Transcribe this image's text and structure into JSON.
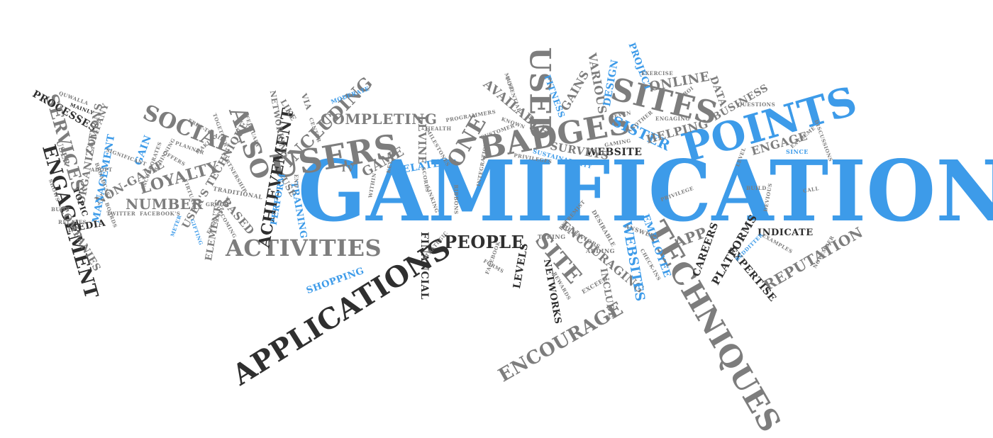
{
  "colors": {
    "blue": "#3d9be9",
    "dark": "#2f2f2f",
    "grey": "#7d7d7d",
    "light": "#a6a6a6"
  },
  "words": {
    "gamification": "GAMIFICATION",
    "points": "POINTS",
    "sites": "SITES",
    "badges": "BADGES",
    "used": "USED",
    "users": "USERS",
    "techniques": "TECHNIQUES",
    "applications": "APPLICATIONS",
    "activities": "ACTIVITIES",
    "also": "ALSO",
    "achievement": "ACHIEVEMENT",
    "engagement": "ENGAGEMENT",
    "services": "SERVICES",
    "processes": "PROCESSES",
    "social": "SOCIAL",
    "loyalty": "LOYALTY",
    "number": "NUMBER",
    "including": "INCLUDING",
    "completing": "COMPLETING",
    "game": "GAME",
    "levine": "LEVINE",
    "one": "ONE",
    "available": "AVAILABLE",
    "gains": "GAINS",
    "various": "VARIOUS",
    "design": "DESIGN",
    "project": "PROJECT",
    "online": "ONLINE",
    "data": "DATA",
    "business": "BUSINESS",
    "engage": "ENGAGE",
    "sister": "SISTER",
    "helping": "HELPING",
    "website": "WEBSITE",
    "surveys": "SURVEYS",
    "people": "PEOPLE",
    "site": "SITE",
    "encouraging": "ENCOURAGING",
    "encourage": "ENCOURAGE",
    "websites": "WEBSITES",
    "employee": "EMPLOYEE",
    "app": "APP",
    "careers": "CAREERS",
    "platforms": "PLATFORMS",
    "indicate": "INDICATE",
    "reputation": "REPUTATION",
    "expertise": "EXPERTISE",
    "financial": "FINANCIAL",
    "shopping": "SHOPPING",
    "levels": "LEVELS",
    "networks": "NETWORKS",
    "include": "INCLUDE",
    "related": "RELATED",
    "tv": "TV",
    "networking": "NETWORKING",
    "like": "LIKE",
    "via": "VIA",
    "perform": "PERFORM",
    "training": "TRAINING",
    "use": "USE",
    "based": "BASED",
    "users_technique": "USER'S TECHNIQUE",
    "elements": "ELEMENTS",
    "non_game": "NON-GAME",
    "gain": "GAIN",
    "management": "MANAGEMENT",
    "media": "MEDIA",
    "companies": "COMPANIES",
    "organizations": "ORGANIZATIONS",
    "company": "COMPANY",
    "topic": "TOPIC",
    "user": "USER",
    "fitness": "FITNESS",
    "sustainability": "SUSTAINABILITY",
    "moderate": "MODERATE",
    "taking": "TAKING",
    "behaviors": "BEHAVIORS",
    "adding": "ADDING",
    "exceed": "EXCEED",
    "desirable": "DESIRABLE",
    "answers": "ANSWERS",
    "check_ins": "CHECK-INS",
    "rewards": "REWARDS",
    "facebook": "FACEBOOK",
    "forms": "FORMS",
    "strategic": "STRATEGIC",
    "ribbons": "RIBBONS",
    "linking": "LINKING",
    "scores": "SCORES",
    "within": "WITHIN",
    "key": "KEY",
    "milestones": "MILESTONES",
    "health": "HEALTH",
    "integration": "INTEGRATION",
    "known": "KNOWN",
    "potential": "POTENTIAL",
    "customer": "CUSTOMER",
    "programmers": "PROGRAMMERS",
    "privileges": "PRIVILEGES",
    "privilege": "PRIVILEGE",
    "extremist": "EXTREMIST",
    "gaming": "GAMING",
    "seven": "SEVEN",
    "another": "ANOTHER",
    "engaging": "ENGAGING",
    "exercise": "EXERCISE",
    "roi": "ROI",
    "questions": "QUESTIONS",
    "discussions": "DISCUSSIONS",
    "extreme": "EXTREME",
    "since": "SINCE",
    "build": "BUILD",
    "devious": "DEVIOUS",
    "call": "CALL",
    "level": "LEVEL",
    "redditter": "REDDITTER",
    "examples": "EXAMPLES",
    "november": "NOVEMBER",
    "traditional": "TRADITIONAL",
    "partnership": "PARTNERSHIP",
    "group": "GROUP",
    "effectively": "EFFECTIVELY",
    "upcoming": "UPCOMING",
    "gifting": "GIFTING",
    "meter": "METER",
    "facebooks": "FACEBOOK'S",
    "twitter": "TWITTER",
    "boards": "BOARDS",
    "relates": "RELATES",
    "built": "BUILT",
    "shows": "SHOWS",
    "adopt": "ADOPT",
    "significant": "SIGNIFICANT",
    "broadcast": "BROADCAST",
    "incorporates": "INCORPORATES",
    "beginning": "BEGINNING",
    "offers": "OFFERS",
    "planner": "PLANNER",
    "making": "MAKING",
    "together": "TOGETHER",
    "free_to_air": "FREE-TO-AIR",
    "february": "FEBRUARY",
    "center": "CENTER",
    "end": "END",
    "virtual": "VIRTUAL",
    "quwalla": "QUWALLA",
    "mainly": "MAINLY",
    "must": "MUST"
  }
}
